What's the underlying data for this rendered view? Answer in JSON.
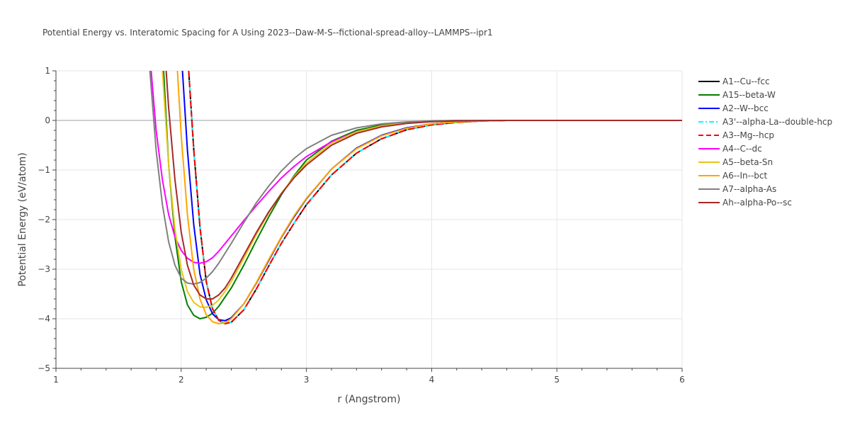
{
  "chart_data": {
    "type": "line",
    "title": "Potential Energy vs. Interatomic Spacing for A Using 2023--Daw-M-S--fictional-spread-alloy--LAMMPS--ipr1",
    "xlabel": "r (Angstrom)",
    "ylabel": "Potential Energy (eV/atom)",
    "xlim": [
      1,
      6
    ],
    "ylim": [
      -5,
      1
    ],
    "xticks": [
      "1",
      "2",
      "3",
      "4",
      "5",
      "6"
    ],
    "yticks": [
      "1",
      "0",
      "−1",
      "−2",
      "−3",
      "−4",
      "−5"
    ],
    "grid": true,
    "legend_position": "right",
    "series": [
      {
        "name": "A1--Cu--fcc",
        "color": "#000000",
        "dash": "solid",
        "x": [
          2.06,
          2.1,
          2.15,
          2.2,
          2.25,
          2.3,
          2.35,
          2.4,
          2.5,
          2.6,
          2.7,
          2.8,
          2.9,
          3.0,
          3.2,
          3.4,
          3.6,
          3.8,
          4.0,
          4.2,
          4.4,
          4.6,
          5.0,
          6.0
        ],
        "y": [
          1.0,
          -0.58,
          -2.15,
          -3.25,
          -3.8,
          -4.03,
          -4.1,
          -4.07,
          -3.82,
          -3.4,
          -2.93,
          -2.48,
          -2.08,
          -1.7,
          -1.1,
          -0.66,
          -0.37,
          -0.19,
          -0.09,
          -0.04,
          -0.01,
          0,
          0,
          0
        ]
      },
      {
        "name": "A15--beta-W",
        "color": "#008000",
        "dash": "solid",
        "x": [
          1.86,
          1.9,
          1.95,
          2.0,
          2.05,
          2.1,
          2.15,
          2.2,
          2.25,
          2.3,
          2.4,
          2.5,
          2.6,
          2.7,
          2.8,
          2.9,
          3.0,
          3.2,
          3.4,
          3.6,
          3.8,
          4.0,
          4.2,
          4.5,
          6.0
        ],
        "y": [
          1.0,
          -0.9,
          -2.35,
          -3.25,
          -3.72,
          -3.93,
          -4.0,
          -3.97,
          -3.89,
          -3.75,
          -3.38,
          -2.92,
          -2.42,
          -1.94,
          -1.5,
          -1.12,
          -0.8,
          -0.42,
          -0.2,
          -0.09,
          -0.04,
          -0.015,
          0,
          0,
          0
        ]
      },
      {
        "name": "A2--W--bcc",
        "color": "#0000ff",
        "dash": "solid",
        "x": [
          2.01,
          2.05,
          2.1,
          2.15,
          2.2,
          2.25,
          2.3,
          2.35,
          2.4,
          2.5,
          2.6,
          2.7,
          2.8,
          2.9,
          3.0,
          3.2,
          3.4,
          3.6,
          3.8,
          4.0,
          4.2,
          4.4,
          4.6,
          6.0
        ],
        "y": [
          1.0,
          -0.6,
          -2.1,
          -3.1,
          -3.62,
          -3.9,
          -4.02,
          -4.04,
          -3.98,
          -3.7,
          -3.28,
          -2.82,
          -2.36,
          -1.95,
          -1.58,
          -0.98,
          -0.56,
          -0.3,
          -0.15,
          -0.07,
          -0.03,
          -0.01,
          0,
          0
        ]
      },
      {
        "name": "A3'--alpha-La--double-hcp",
        "color": "#00ffff",
        "dash": "dashdot",
        "x": [
          2.06,
          2.1,
          2.15,
          2.2,
          2.25,
          2.3,
          2.35,
          2.4,
          2.5,
          2.6,
          2.7,
          2.8,
          2.9,
          3.0,
          3.2,
          3.4,
          3.6,
          3.8,
          4.0,
          4.2,
          4.4,
          4.6,
          5.0,
          6.0
        ],
        "y": [
          1.0,
          -0.58,
          -2.15,
          -3.25,
          -3.8,
          -4.03,
          -4.1,
          -4.07,
          -3.82,
          -3.4,
          -2.93,
          -2.48,
          -2.08,
          -1.7,
          -1.1,
          -0.66,
          -0.37,
          -0.19,
          -0.09,
          -0.04,
          -0.01,
          0,
          0,
          0
        ]
      },
      {
        "name": "A3--Mg--hcp",
        "color": "#ff0000",
        "dash": "dash",
        "x": [
          2.06,
          2.1,
          2.15,
          2.2,
          2.25,
          2.3,
          2.35,
          2.4,
          2.5,
          2.6,
          2.7,
          2.8,
          2.9,
          3.0,
          3.2,
          3.4,
          3.6,
          3.8,
          4.0,
          4.2,
          4.4,
          4.6,
          5.0,
          6.0
        ],
        "y": [
          1.0,
          -0.58,
          -2.15,
          -3.25,
          -3.8,
          -4.03,
          -4.1,
          -4.07,
          -3.82,
          -3.4,
          -2.93,
          -2.48,
          -2.08,
          -1.7,
          -1.1,
          -0.66,
          -0.37,
          -0.19,
          -0.09,
          -0.04,
          -0.01,
          0,
          0,
          0
        ]
      },
      {
        "name": "A4--C--dc",
        "color": "#ff00ff",
        "dash": "solid",
        "x": [
          1.76,
          1.8,
          1.85,
          1.9,
          1.95,
          2.0,
          2.05,
          2.1,
          2.15,
          2.2,
          2.25,
          2.3,
          2.4,
          2.5,
          2.6,
          2.7,
          2.8,
          2.9,
          3.0,
          3.2,
          3.4,
          3.6,
          3.8,
          4.0,
          4.2,
          4.5,
          6.0
        ],
        "y": [
          1.0,
          -0.2,
          -1.2,
          -1.9,
          -2.35,
          -2.62,
          -2.78,
          -2.86,
          -2.88,
          -2.85,
          -2.77,
          -2.64,
          -2.33,
          -2.02,
          -1.72,
          -1.43,
          -1.16,
          -0.93,
          -0.73,
          -0.43,
          -0.23,
          -0.11,
          -0.05,
          -0.02,
          -0.005,
          0,
          0
        ]
      },
      {
        "name": "A5--beta-Sn",
        "color": "#e6c619",
        "dash": "solid",
        "x": [
          1.85,
          1.9,
          1.95,
          2.0,
          2.05,
          2.1,
          2.15,
          2.2,
          2.25,
          2.3,
          2.35,
          2.4,
          2.5,
          2.6,
          2.7,
          2.8,
          2.9,
          3.0,
          3.2,
          3.4,
          3.6,
          3.8,
          4.0,
          4.2,
          4.5,
          6.0
        ],
        "y": [
          1.0,
          -0.9,
          -2.2,
          -3.0,
          -3.45,
          -3.67,
          -3.76,
          -3.77,
          -3.73,
          -3.62,
          -3.45,
          -3.25,
          -2.78,
          -2.3,
          -1.86,
          -1.47,
          -1.14,
          -0.86,
          -0.46,
          -0.23,
          -0.11,
          -0.05,
          -0.02,
          -0.007,
          0,
          0
        ]
      },
      {
        "name": "A6--In--bct",
        "color": "#ffa500",
        "dash": "solid",
        "x": [
          1.97,
          2.0,
          2.05,
          2.1,
          2.15,
          2.2,
          2.25,
          2.3,
          2.35,
          2.4,
          2.5,
          2.6,
          2.7,
          2.8,
          2.9,
          3.0,
          3.2,
          3.4,
          3.6,
          3.8,
          4.0,
          4.2,
          4.4,
          4.6,
          6.0
        ],
        "y": [
          1.0,
          -0.3,
          -1.9,
          -3.0,
          -3.6,
          -3.92,
          -4.06,
          -4.1,
          -4.08,
          -4.0,
          -3.7,
          -3.27,
          -2.8,
          -2.35,
          -1.93,
          -1.57,
          -0.98,
          -0.57,
          -0.31,
          -0.16,
          -0.07,
          -0.03,
          -0.01,
          0,
          0
        ]
      },
      {
        "name": "A7--alpha-As",
        "color": "#808080",
        "dash": "solid",
        "x": [
          1.75,
          1.8,
          1.85,
          1.9,
          1.95,
          2.0,
          2.05,
          2.1,
          2.15,
          2.2,
          2.25,
          2.3,
          2.4,
          2.5,
          2.6,
          2.7,
          2.8,
          2.9,
          3.0,
          3.2,
          3.4,
          3.6,
          3.8,
          4.0,
          4.2,
          4.5,
          6.0
        ],
        "y": [
          1.0,
          -0.6,
          -1.7,
          -2.45,
          -2.92,
          -3.18,
          -3.28,
          -3.3,
          -3.27,
          -3.18,
          -3.05,
          -2.88,
          -2.48,
          -2.06,
          -1.66,
          -1.32,
          -1.02,
          -0.77,
          -0.57,
          -0.3,
          -0.15,
          -0.07,
          -0.03,
          -0.012,
          -0.004,
          0,
          0
        ]
      },
      {
        "name": "Ah--alpha-Po--sc",
        "color": "#a52a2a",
        "dash": "solid",
        "x": [
          1.88,
          1.9,
          1.95,
          2.0,
          2.05,
          2.1,
          2.15,
          2.2,
          2.25,
          2.3,
          2.35,
          2.4,
          2.5,
          2.6,
          2.7,
          2.8,
          2.9,
          3.0,
          3.2,
          3.4,
          3.6,
          3.8,
          4.0,
          4.2,
          4.4,
          4.6,
          6.0
        ],
        "y": [
          1.0,
          0.25,
          -1.2,
          -2.25,
          -2.92,
          -3.32,
          -3.52,
          -3.6,
          -3.6,
          -3.52,
          -3.38,
          -3.18,
          -2.72,
          -2.26,
          -1.84,
          -1.48,
          -1.16,
          -0.9,
          -0.5,
          -0.26,
          -0.13,
          -0.06,
          -0.025,
          -0.01,
          -0.003,
          0,
          0
        ]
      }
    ]
  }
}
